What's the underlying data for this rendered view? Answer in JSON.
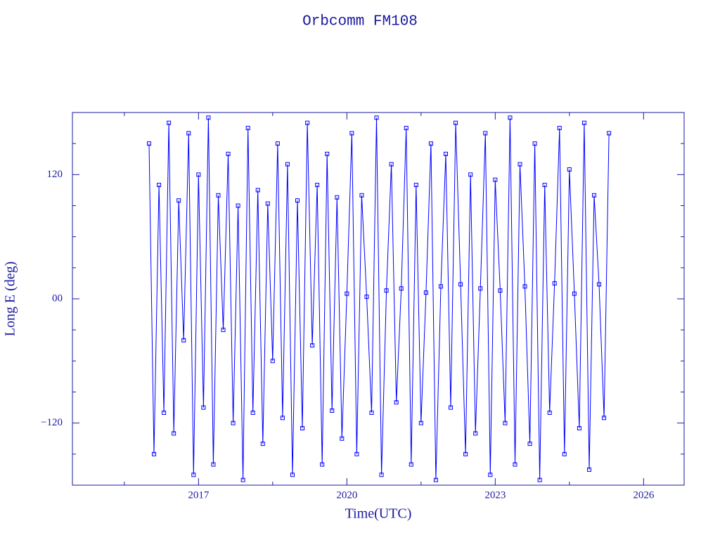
{
  "chart_data": {
    "type": "line",
    "title": "Orbcomm FM108",
    "x_label": "Time(UTC)",
    "y_label": "Long E (deg)",
    "xlim": [
      2014.45,
      2026.82
    ],
    "ylim": [
      -180,
      180
    ],
    "xticks": [
      2017,
      2020,
      2023,
      2026
    ],
    "x_minor_ticks": [
      2015.5,
      2018.5,
      2021.5,
      2024.5
    ],
    "yticks": [
      {
        "value": -120,
        "label": "−120"
      },
      {
        "value": 0,
        "label": "00"
      },
      120
    ],
    "y_minor_ticks": [
      -150,
      -90,
      -60,
      -30,
      30,
      60,
      90,
      150
    ],
    "marker": "square",
    "series": [
      {
        "color": "#0000ff",
        "x": [
          2016.0,
          2016.1,
          2016.2,
          2016.3,
          2016.4,
          2016.5,
          2016.6,
          2016.7,
          2016.8,
          2016.9,
          2017.0,
          2017.1,
          2017.2,
          2017.3,
          2017.4,
          2017.5,
          2017.6,
          2017.7,
          2017.8,
          2017.9,
          2018.0,
          2018.1,
          2018.2,
          2018.3,
          2018.4,
          2018.5,
          2018.6,
          2018.7,
          2018.8,
          2018.9,
          2019.0,
          2019.1,
          2019.2,
          2019.3,
          2019.4,
          2019.5,
          2019.6,
          2019.7,
          2019.8,
          2019.9,
          2020.0,
          2020.1,
          2020.2,
          2020.3,
          2020.4,
          2020.5,
          2020.6,
          2020.7,
          2020.8,
          2020.9,
          2021.0,
          2021.1,
          2021.2,
          2021.3,
          2021.4,
          2021.5,
          2021.6,
          2021.7,
          2021.8,
          2021.9,
          2022.0,
          2022.1,
          2022.2,
          2022.3,
          2022.4,
          2022.5,
          2022.6,
          2022.7,
          2022.8,
          2022.9,
          2023.0,
          2023.1,
          2023.2,
          2023.3,
          2023.4,
          2023.5,
          2023.6,
          2023.7,
          2023.8,
          2023.9,
          2024.0,
          2024.1,
          2024.2,
          2024.3,
          2024.4,
          2024.5,
          2024.6,
          2024.7,
          2024.8,
          2024.9,
          2025.0,
          2025.1,
          2025.2,
          2025.3
        ],
        "values": [
          150,
          -150,
          110,
          -110,
          170,
          -130,
          95,
          -40,
          160,
          -170,
          120,
          -105,
          175,
          -160,
          100,
          -30,
          140,
          -120,
          90,
          -175,
          165,
          -110,
          105,
          -140,
          92,
          -60,
          150,
          -115,
          130,
          -170,
          95,
          -125,
          170,
          -45,
          110,
          -160,
          140,
          -108,
          98,
          -135,
          5,
          160,
          -150,
          100,
          2,
          -110,
          175,
          -170,
          8,
          130,
          -100,
          10,
          165,
          -160,
          110,
          -120,
          6,
          150,
          -175,
          12,
          140,
          -105,
          170,
          14,
          -150,
          120,
          -130,
          10,
          160,
          -170,
          115,
          8,
          -120,
          175,
          -160,
          130,
          12,
          -140,
          150,
          -175,
          110,
          -110,
          15,
          165,
          -150,
          125,
          5,
          -125,
          170,
          -165,
          100,
          14,
          -115,
          160
        ]
      }
    ]
  }
}
